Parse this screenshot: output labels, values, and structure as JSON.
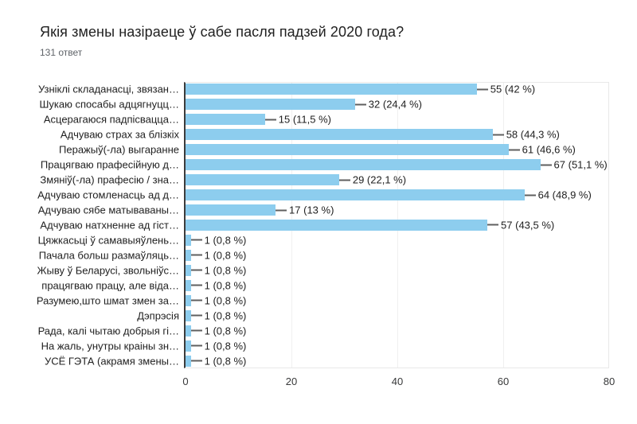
{
  "header": {
    "title": "Якія змены назіраеце ў сабе пасля падзей 2020 года?",
    "subtitle": "131 ответ"
  },
  "chart_data": {
    "type": "bar",
    "orientation": "horizontal",
    "title": "Якія змены назіраеце ў сабе пасля падзей 2020 года?",
    "subtitle": "131 ответ",
    "categories": [
      "Узніклі складанасці, звязан…",
      "Шукаю спосабы адцягнуцц…",
      "Асцерагаюся падпісвацца…",
      "Адчуваю страх за блізкіх",
      "Перажыў(-ла) выгаранне",
      "Працягваю прафесійную д…",
      "Змяніў(-ла) прафесію / зна…",
      "Адчуваю стомленасць ад д…",
      "Адчуваю сябе матываваны…",
      "Адчуваю натхненне ад гіст…",
      "Цяжкасьці ў самавыяўлень…",
      "Пачала больш размаўляць…",
      "Жыву ў Беларусі, звольніўс…",
      "працягваю працу, але віда…",
      "Разумею,што шмат змен за…",
      "Дэпрэсія",
      "Рада, калі чытаю добрыя гі…",
      "На жаль, унутры краіны зн…",
      "УСЁ ГЭТА (акрамя змены…"
    ],
    "values": [
      55,
      32,
      15,
      58,
      61,
      67,
      29,
      64,
      17,
      57,
      1,
      1,
      1,
      1,
      1,
      1,
      1,
      1,
      1
    ],
    "percents": [
      42,
      24.4,
      11.5,
      44.3,
      46.6,
      51.1,
      22.1,
      48.9,
      13,
      43.5,
      0.8,
      0.8,
      0.8,
      0.8,
      0.8,
      0.8,
      0.8,
      0.8,
      0.8
    ],
    "value_labels": [
      "55 (42 %)",
      "32 (24,4 %)",
      "15 (11,5 %)",
      "58 (44,3 %)",
      "61 (46,6 %)",
      "67 (51,1 %)",
      "29 (22,1 %)",
      "64 (48,9 %)",
      "17 (13 %)",
      "57 (43,5 %)",
      "1 (0,8 %)",
      "1 (0,8 %)",
      "1 (0,8 %)",
      "1 (0,8 %)",
      "1 (0,8 %)",
      "1 (0,8 %)",
      "1 (0,8 %)",
      "1 (0,8 %)",
      "1 (0,8 %)"
    ],
    "xlim": [
      0,
      80
    ],
    "x_ticks": [
      "0",
      "20",
      "40",
      "60",
      "80"
    ],
    "xlabel": "",
    "ylabel": "",
    "grid": true,
    "legend": false,
    "bar_color": "#8DCDEE",
    "axis_line_color": "#3c3c3c",
    "leader_line_color": "#5f5f5f",
    "text_color": "#212121",
    "subtitle_color": "#5f6368"
  }
}
